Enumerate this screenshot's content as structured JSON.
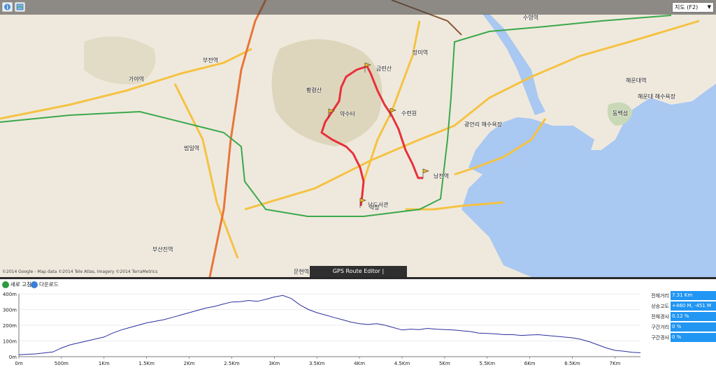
{
  "toolbar": {
    "map_type_select": "지도 (F2)",
    "icons": [
      "info-icon",
      "layers-icon"
    ]
  },
  "map": {
    "attribution": "©2014 Google - Map data ©2014 Tele Atlas, Imagery ©2014 TerraMetrics",
    "banner": "GPS Route Editor | www.gpsnote.net",
    "colors": {
      "route": "#e8303a",
      "water": "#a9c8f2",
      "land": "#efe9dd",
      "park": "#d9d3b8",
      "rail": "#3aa84a"
    },
    "waypoints": [
      {
        "name": "금련산"
      },
      {
        "name": "수련원"
      },
      {
        "name": "약수터"
      },
      {
        "name": "남천역"
      },
      {
        "name": "남도서관"
      },
      {
        "name": "약장"
      }
    ],
    "place_labels": [
      {
        "text": "부산진역"
      },
      {
        "text": "부전역"
      },
      {
        "text": "가야역"
      },
      {
        "text": "범일역"
      },
      {
        "text": "수영역"
      },
      {
        "text": "해운대역"
      },
      {
        "text": "동백섬"
      },
      {
        "text": "해운대 해수욕장"
      },
      {
        "text": "광안리 해수욕장"
      },
      {
        "text": "황령산"
      },
      {
        "text": "망미역"
      },
      {
        "text": "문현역"
      }
    ]
  },
  "panel": {
    "refresh_label": "새로 고침",
    "download_label": "다운로드",
    "stats": [
      {
        "label": "전체거리",
        "value": "7.31 Km"
      },
      {
        "label": "상승고도",
        "value": "+460 M, -451 M"
      },
      {
        "label": "전체경사",
        "value": "0.12 %"
      },
      {
        "label": "구간거리",
        "value": "0 %"
      },
      {
        "label": "구간경사",
        "value": "0 %"
      }
    ]
  },
  "chart_data": {
    "type": "area",
    "xlabel": "",
    "ylabel": "",
    "x_ticks": [
      "0m",
      "500m",
      "1Km",
      "1.5Km",
      "2Km",
      "2.5Km",
      "3Km",
      "3.5Km",
      "4Km",
      "4.5Km",
      "5Km",
      "5.5Km",
      "6Km",
      "6.5Km",
      "7Km"
    ],
    "y_ticks": [
      "0m",
      "100m",
      "200m",
      "300m",
      "400m"
    ],
    "xlim": [
      0,
      7.3
    ],
    "ylim": [
      0,
      400
    ],
    "series": [
      {
        "x": [
          0,
          0.2,
          0.4,
          0.5,
          0.6,
          0.8,
          1.0,
          1.1,
          1.2,
          1.3,
          1.4,
          1.5,
          1.6,
          1.7,
          1.8,
          1.9,
          2.0,
          2.1,
          2.2,
          2.3,
          2.4,
          2.5,
          2.6,
          2.7,
          2.8,
          2.9,
          3.0,
          3.1,
          3.2,
          3.3,
          3.4,
          3.5,
          3.6,
          3.7,
          3.8,
          3.9,
          4.0,
          4.1,
          4.2,
          4.3,
          4.4,
          4.5,
          4.6,
          4.7,
          4.8,
          4.9,
          5.0,
          5.1,
          5.2,
          5.3,
          5.4,
          5.5,
          5.6,
          5.7,
          5.8,
          5.9,
          6.0,
          6.1,
          6.2,
          6.3,
          6.4,
          6.5,
          6.6,
          6.7,
          6.8,
          6.9,
          7.0,
          7.1,
          7.2,
          7.3
        ],
        "y": [
          12,
          18,
          30,
          55,
          75,
          100,
          125,
          150,
          170,
          185,
          200,
          215,
          225,
          235,
          250,
          265,
          280,
          295,
          310,
          320,
          335,
          348,
          350,
          358,
          352,
          365,
          380,
          390,
          370,
          330,
          300,
          280,
          265,
          250,
          235,
          220,
          210,
          205,
          210,
          200,
          185,
          170,
          175,
          172,
          180,
          175,
          172,
          170,
          165,
          160,
          150,
          148,
          145,
          140,
          140,
          135,
          138,
          140,
          135,
          130,
          125,
          120,
          110,
          95,
          75,
          55,
          40,
          35,
          28,
          25
        ]
      }
    ]
  }
}
